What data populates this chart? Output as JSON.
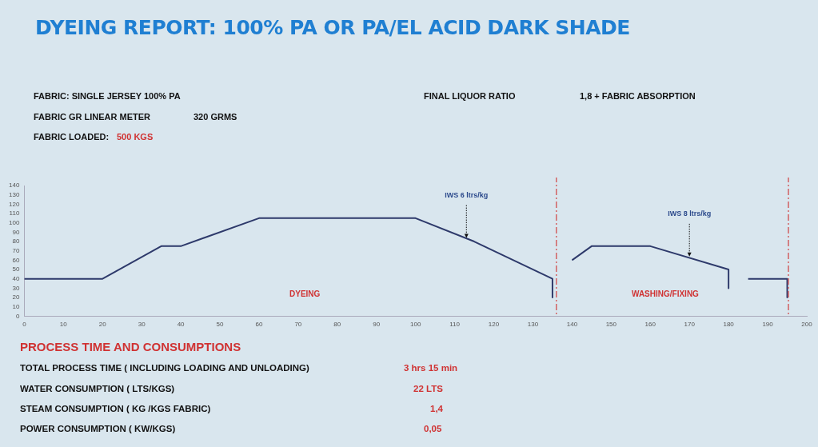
{
  "chart_data": {
    "type": "line",
    "title": "DYEING REPORT: 100% PA OR PA/EL ACID DARK SHADE",
    "x": [
      0,
      20,
      35,
      40,
      60,
      100,
      115,
      135,
      135,
      137,
      140,
      145,
      160,
      180,
      180,
      182,
      185,
      195,
      195
    ],
    "series": [
      {
        "color": "#2e3a6b",
        "values": [
          40,
          40,
          75,
          75,
          105,
          105,
          80,
          40,
          20,
          null,
          60,
          75,
          75,
          50,
          30,
          null,
          40,
          40,
          20
        ]
      }
    ],
    "xlim": [
      0,
      200
    ],
    "xticks": [
      0,
      10,
      20,
      30,
      40,
      50,
      60,
      70,
      80,
      90,
      100,
      110,
      120,
      130,
      140,
      150,
      160,
      170,
      180,
      190,
      200
    ],
    "ylim": [
      0,
      140
    ],
    "yticks": [
      0,
      10,
      20,
      30,
      40,
      50,
      60,
      70,
      80,
      90,
      100,
      110,
      120,
      130,
      140
    ],
    "grid": false,
    "legend": false,
    "marker": "none",
    "line_style": "solid",
    "ref_lines": [
      {
        "axis": "x",
        "value": 136,
        "color": "#d04040",
        "line_style": "dashed"
      },
      {
        "axis": "x",
        "value": 195.3,
        "color": "#d04040",
        "line_style": "dashed"
      }
    ],
    "annotations": [
      "FABRIC:   SINGLE JERSEY 100% PA",
      "FINAL LIQUOR RATIO",
      "1,8 + FABRIC ABSORPTION",
      "FABRIC GR LINEAR METER",
      "320 GRMS",
      "FABRIC LOADED:",
      "500 KGS",
      "PROCESS TIME AND CONSUMPTIONS",
      "TOTAL PROCESS TIME ( INCLUDING LOADING AND UNLOADING)",
      "3 hrs 15 min",
      "WATER CONSUMPTION ( LTS/KGS)",
      "22 LTS",
      "STEAM CONSUMPTION ( KG /KGS FABRIC)",
      "1,4",
      "POWER CONSUMPTION ( KW/KGS)",
      "0,05",
      {
        "text": "IWS 6 ltrs/kg",
        "x": 113,
        "y": 83
      },
      {
        "text": "IWS 8 ltrs/kg",
        "x": 170,
        "y": 63
      },
      "DYEING",
      "WASHING/FIXING"
    ]
  }
}
